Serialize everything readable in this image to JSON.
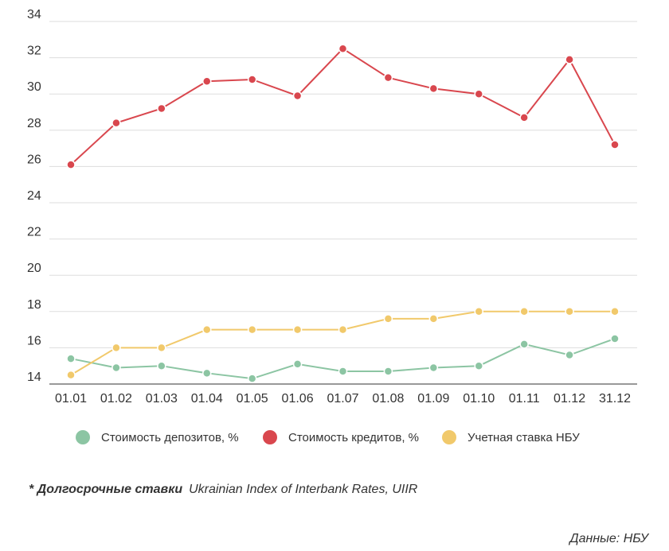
{
  "chart_data": {
    "type": "line",
    "categories": [
      "01.01",
      "01.02",
      "01.03",
      "01.04",
      "01.05",
      "01.06",
      "01.07",
      "01.08",
      "01.09",
      "01.10",
      "01.11",
      "01.12",
      "31.12"
    ],
    "series": [
      {
        "name": "Стоимость депозитов, %",
        "color": "#8cc5a3",
        "values": [
          15.4,
          14.9,
          15.0,
          14.6,
          14.3,
          15.1,
          14.7,
          14.7,
          14.9,
          15.0,
          16.2,
          15.6,
          16.5
        ]
      },
      {
        "name": "Стоимость кредитов, %",
        "color": "#d9474e",
        "values": [
          26.1,
          28.4,
          29.2,
          30.7,
          30.8,
          29.9,
          32.5,
          30.9,
          30.3,
          30.0,
          28.7,
          31.9,
          27.2
        ]
      },
      {
        "name": "Учетная ставка НБУ",
        "color": "#f1c96b",
        "values": [
          14.5,
          16.0,
          16.0,
          17.0,
          17.0,
          17.0,
          17.0,
          17.6,
          17.6,
          18.0,
          18.0,
          18.0,
          18.0
        ]
      }
    ],
    "ylim": [
      14,
      34
    ],
    "yticks": [
      14,
      16,
      18,
      20,
      22,
      24,
      26,
      28,
      30,
      32,
      34
    ],
    "grid": true
  },
  "footnote": {
    "bold": "* Долгосрочные ставки",
    "text": "Ukrainian Index of Interbank Rates, UIIR"
  },
  "source": "Данные: НБУ"
}
